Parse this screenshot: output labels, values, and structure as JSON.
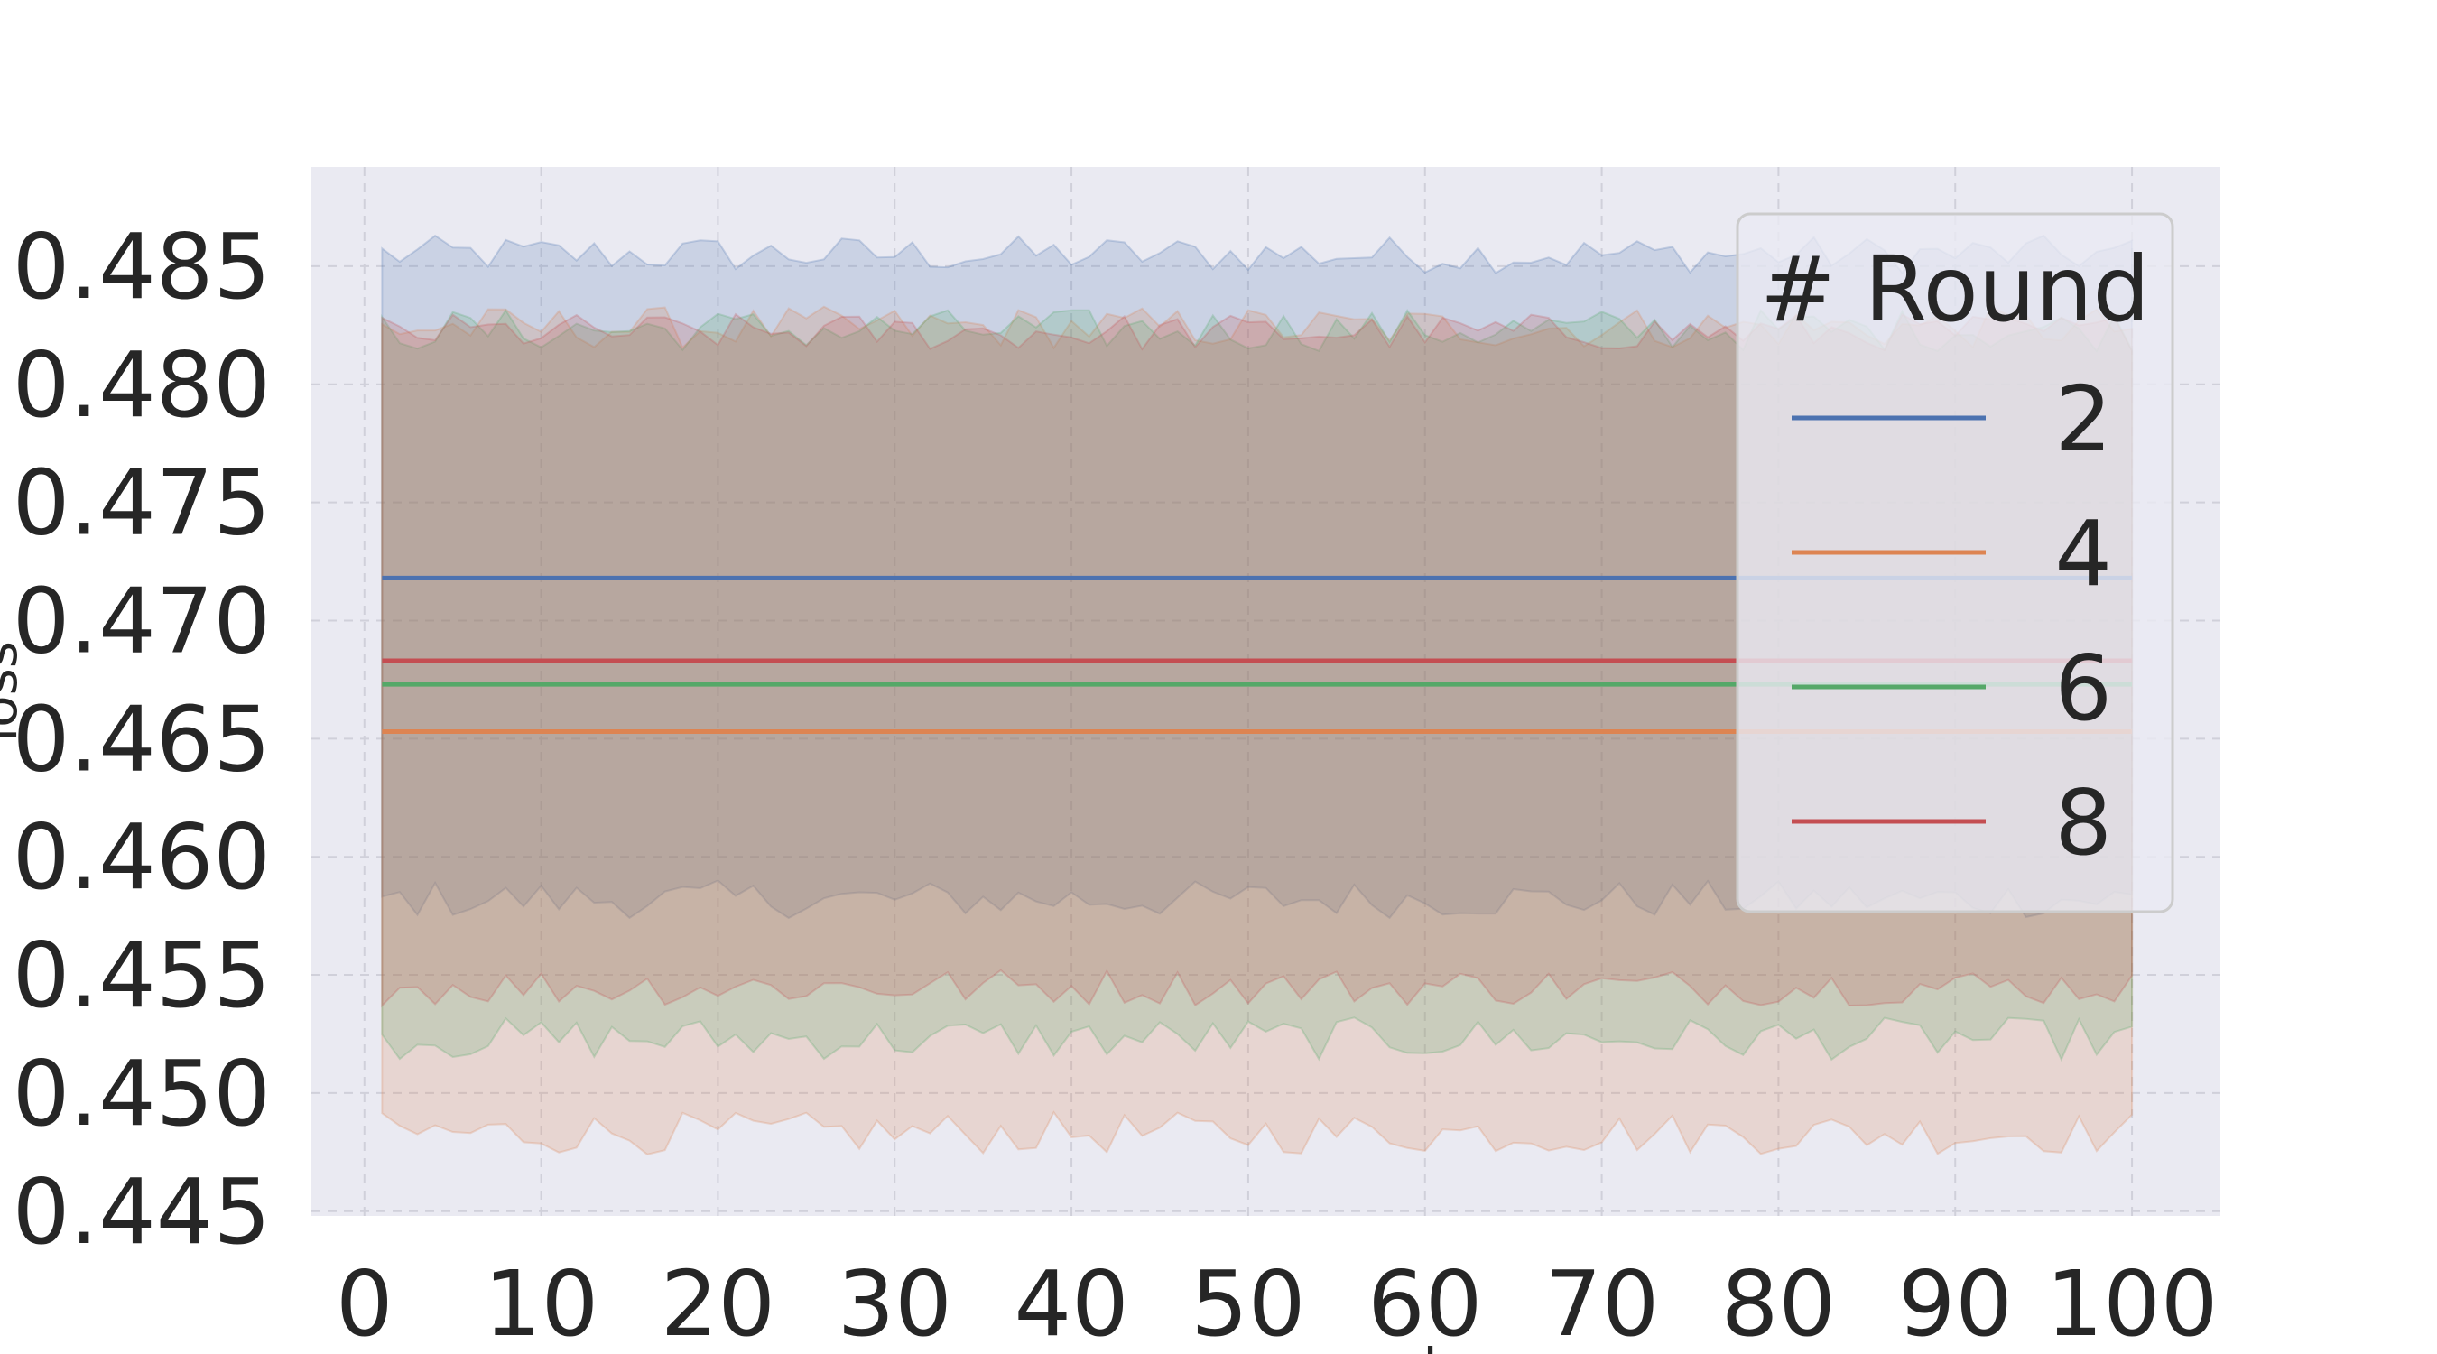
{
  "chart_data": {
    "type": "line",
    "title": "",
    "xlabel": "server_round",
    "ylabel": "loss",
    "xlim": [
      -3,
      105
    ],
    "ylim": [
      0.4448,
      0.4892
    ],
    "xticks": [
      0,
      10,
      20,
      30,
      40,
      50,
      60,
      70,
      80,
      90,
      100
    ],
    "yticks": [
      0.445,
      0.45,
      0.455,
      0.46,
      0.465,
      0.47,
      0.475,
      0.48,
      0.485
    ],
    "ytick_labels": [
      "0.445",
      "0.450",
      "0.455",
      "0.460",
      "0.465",
      "0.470",
      "0.475",
      "0.480",
      "0.485"
    ],
    "x_range": [
      1,
      100
    ],
    "grid": true,
    "legend": {
      "title": "# Round",
      "placement": "top-right"
    },
    "series": [
      {
        "name": "2",
        "color": "#4c72b0",
        "mean": 0.4718,
        "band_upper": 0.4855,
        "band_lower": 0.4582,
        "band_jitter": 0.0008
      },
      {
        "name": "4",
        "color": "#dd8452",
        "mean": 0.4653,
        "band_upper": 0.4824,
        "band_lower": 0.4483,
        "band_jitter": 0.0009
      },
      {
        "name": "6",
        "color": "#55a868",
        "mean": 0.4673,
        "band_upper": 0.4823,
        "band_lower": 0.4523,
        "band_jitter": 0.0009
      },
      {
        "name": "8",
        "color": "#c44e52",
        "mean": 0.4683,
        "band_upper": 0.4822,
        "band_lower": 0.4545,
        "band_jitter": 0.0008
      }
    ]
  }
}
